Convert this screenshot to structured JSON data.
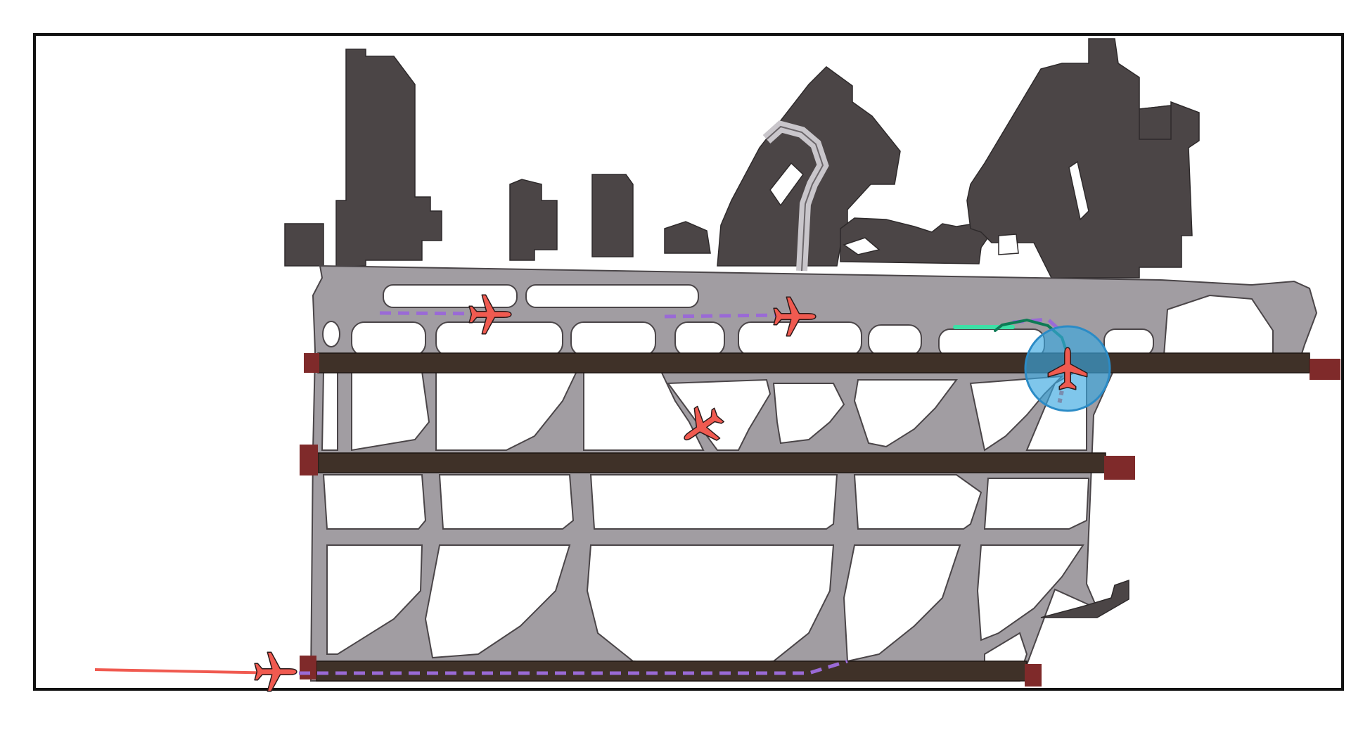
{
  "map": {
    "colors": {
      "background": "#ffffff",
      "frame": "#111111",
      "apron": "#a19da2",
      "apron_outline": "#4a4548",
      "buildings": "#4b4546",
      "runway": "#3f3128",
      "runway_threshold": "#7f2a2a",
      "aircraft": "#f05a50",
      "taxi_route": "#9a6ad6",
      "approach_path": "#f05a50",
      "turn_path": "#0d7a55",
      "turn_path_glow": "#3de0a6",
      "highlight": "#3aa7e0"
    },
    "runways": [
      {
        "name": "runway-north"
      },
      {
        "name": "runway-middle"
      },
      {
        "name": "runway-south"
      }
    ],
    "aircraft": [
      {
        "id": "aircraft-apron-west",
        "heading": 0
      },
      {
        "id": "aircraft-apron-center",
        "heading": 0
      },
      {
        "id": "aircraft-taxiway",
        "heading": -35
      },
      {
        "id": "aircraft-highlighted",
        "heading": 90
      },
      {
        "id": "aircraft-arriving",
        "heading": 0
      }
    ],
    "highlight": {
      "target": "aircraft-highlighted",
      "opacity": 0.65
    }
  }
}
